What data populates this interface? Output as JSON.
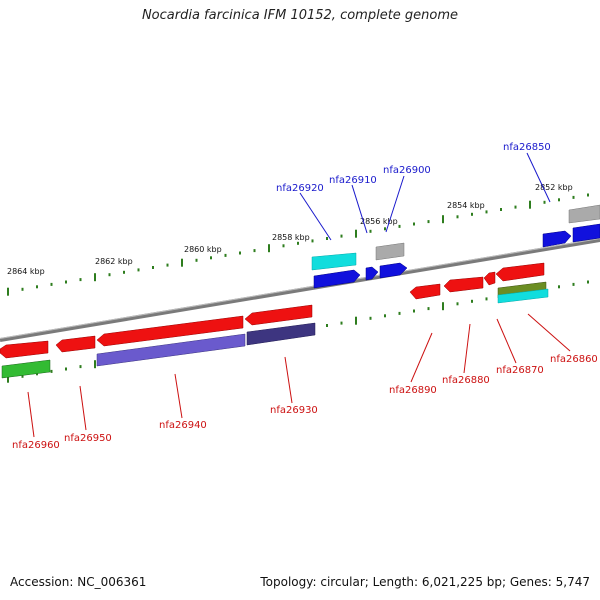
{
  "title": "Nocardia farcinica IFM 10152, complete genome",
  "footer": {
    "accession": "Accession: NC_006361",
    "summary": "Topology: circular; Length: 6,021,225 bp; Genes: 5,747"
  },
  "scale_labels": [
    "2852 kbp",
    "2854 kbp",
    "2856 kbp",
    "2858 kbp",
    "2860 kbp",
    "2862 kbp",
    "2864 kbp"
  ],
  "gene_labels": {
    "forward": [
      "nfa26850",
      "nfa26900",
      "nfa26910",
      "nfa26920"
    ],
    "reverse": [
      "nfa26860",
      "nfa26870",
      "nfa26880",
      "nfa26890",
      "nfa26930",
      "nfa26940",
      "nfa26950",
      "nfa26960"
    ]
  },
  "colors": {
    "backbone": "#8a8a8a",
    "tick": "#2e7d1e",
    "forward_label": "#1a1acc",
    "reverse_label": "#cc1111",
    "gene_red": "#ee1111",
    "gene_blue": "#1111dd",
    "gene_cyan": "#11dddd",
    "gene_gray": "#aaaaaa",
    "gene_purple": "#6a5acd",
    "gene_darkpurple": "#3d3580",
    "gene_green": "#33bb33",
    "gene_olive": "#6b8e23"
  }
}
